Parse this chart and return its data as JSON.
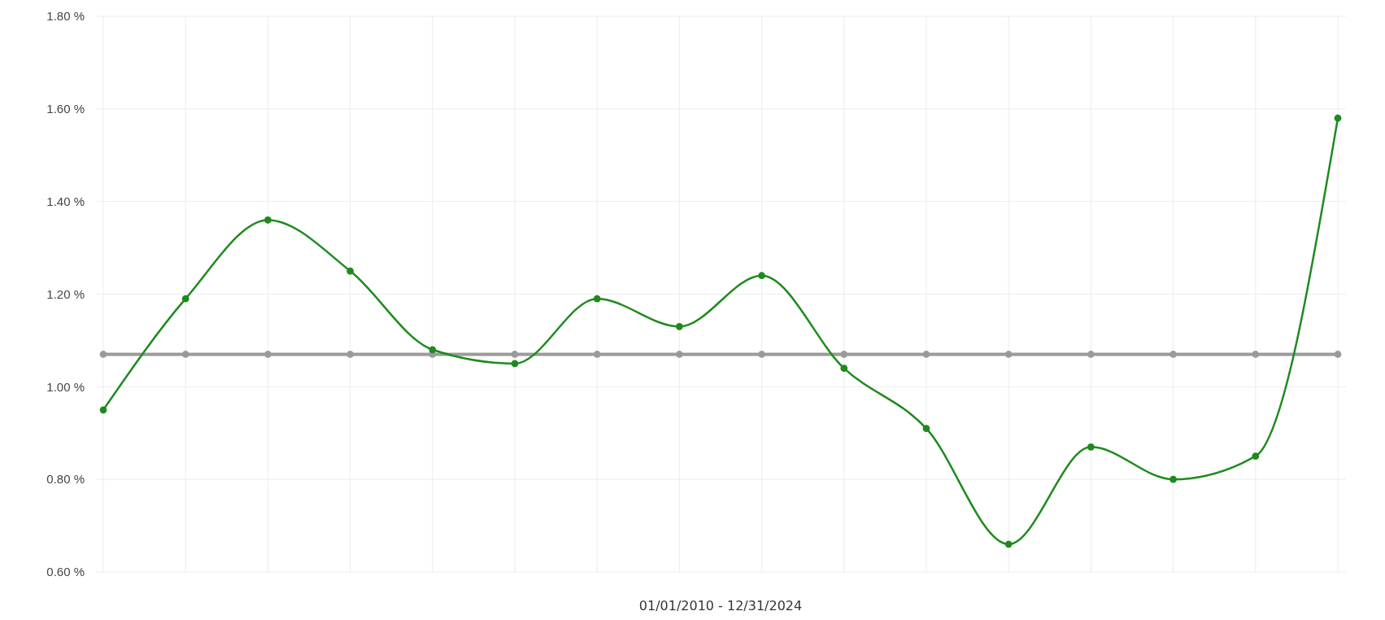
{
  "chart_data": {
    "type": "line",
    "xlabel": "01/01/2010 - 12/31/2024",
    "categories": [
      null,
      null,
      null,
      null,
      null,
      null,
      null,
      null,
      null,
      null,
      null,
      null,
      null,
      null,
      null,
      null
    ],
    "series": [
      {
        "color": "#9a9a9a",
        "values": [
          1.07,
          1.07,
          1.07,
          1.07,
          1.07,
          1.07,
          1.07,
          1.07,
          1.07,
          1.07,
          1.07,
          1.07,
          1.07,
          1.07,
          1.07,
          1.07
        ]
      },
      {
        "color": "#1e8a1e",
        "values": [
          0.95,
          1.19,
          1.36,
          1.25,
          1.08,
          1.05,
          1.19,
          1.13,
          1.24,
          1.04,
          0.91,
          0.66,
          0.87,
          0.8,
          0.85,
          1.58
        ]
      }
    ],
    "ylim": [
      0.6,
      1.8
    ],
    "yticks": [
      {
        "value": 0.6,
        "label": "0.60 %"
      },
      {
        "value": 0.8,
        "label": "0.80 %"
      },
      {
        "value": 1.0,
        "label": "1.00 %"
      },
      {
        "value": 1.2,
        "label": "1.20 %"
      },
      {
        "value": 1.4,
        "label": "1.40 %"
      },
      {
        "value": 1.6,
        "label": "1.60 %"
      },
      {
        "value": 1.8,
        "label": "1.80 %"
      }
    ],
    "grid": true,
    "marker": "circle",
    "line_style": "solid"
  }
}
